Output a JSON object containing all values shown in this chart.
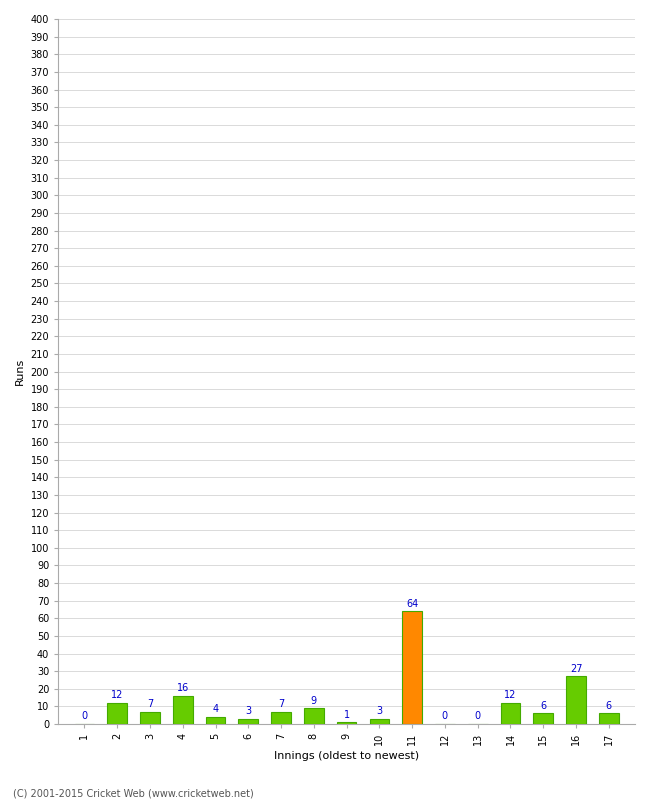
{
  "innings": [
    1,
    2,
    3,
    4,
    5,
    6,
    7,
    8,
    9,
    10,
    11,
    12,
    13,
    14,
    15,
    16,
    17
  ],
  "runs": [
    0,
    12,
    7,
    16,
    4,
    3,
    7,
    9,
    1,
    3,
    64,
    0,
    0,
    12,
    6,
    27,
    6
  ],
  "colors": [
    "#66cc00",
    "#66cc00",
    "#66cc00",
    "#66cc00",
    "#66cc00",
    "#66cc00",
    "#66cc00",
    "#66cc00",
    "#66cc00",
    "#66cc00",
    "#ff8800",
    "#66cc00",
    "#66cc00",
    "#66cc00",
    "#66cc00",
    "#66cc00",
    "#66cc00"
  ],
  "xlabel": "Innings (oldest to newest)",
  "ylabel": "Runs",
  "ylim": [
    0,
    400
  ],
  "ytick_step": 10,
  "ytick_max": 400,
  "label_color": "#0000cc",
  "bar_edge_color": "#44aa00",
  "background_color": "#ffffff",
  "grid_color": "#cccccc",
  "footer": "(C) 2001-2015 Cricket Web (www.cricketweb.net)",
  "title_fontsize": 11,
  "axis_label_fontsize": 8,
  "tick_fontsize": 7,
  "footer_fontsize": 7
}
